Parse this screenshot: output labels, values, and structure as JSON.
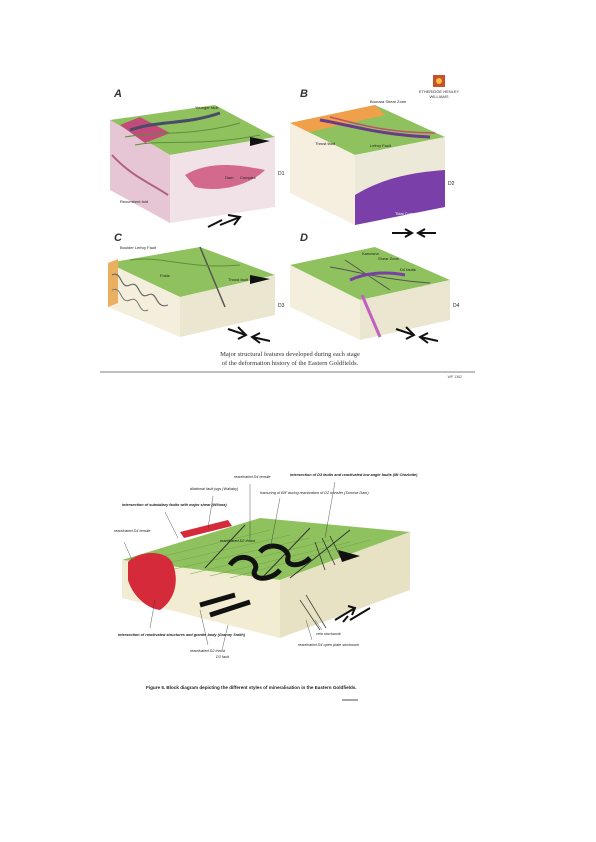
{
  "figure_top": {
    "panel_labels": [
      "A",
      "B",
      "C",
      "D"
    ],
    "stage_labels": [
      "D1",
      "D2",
      "D3",
      "D4"
    ],
    "logo": {
      "line1": "ETHERIDGE HENLEY",
      "line2": "WILLIAMS"
    },
    "caption_line1": "Major structural features developed during each stage",
    "caption_line2": "of the deformation history of the Eastern Goldfields.",
    "figure_code": "WP 1362",
    "panel_a": {
      "labels": [
        "Younger fault",
        "Recumbent fold",
        "Dam",
        "Complex"
      ]
    },
    "panel_b": {
      "labels": [
        "Boorara Shear Zone",
        "Thrust fault",
        "Lefroy Fault",
        "Tidal Complex"
      ]
    },
    "panel_c": {
      "labels": [
        "Boulder Lefroy Fault",
        "Folds",
        "Thrust fault"
      ]
    },
    "panel_d": {
      "labels": [
        "Kanowna",
        "Shear Zone",
        "D4 faults"
      ]
    }
  },
  "figure_bottom": {
    "labels": {
      "reactivated_d4_top": "reactivated D4 tensile",
      "dilational_fault_jogs": "dilational fault jogs (Wallaby)",
      "intersection_subsidiary": "intersection of subsidiary faults with major shear (Wiluna)",
      "reactivated_d4_tensile": "reactivated D4 tensile",
      "reactivated_d2": "reactivated D2 thrust",
      "intersection_d3": "intersection of D3 faults and reactivated low angle faults (Mt Charlotte)",
      "fracturing_bif": "fracturing of BIF during reactivation of D2 transfer (Sunrise Dam)",
      "intersection_granite": "intersection of reactivated structures and granite body (Granny Smith)",
      "reactivated_d2_thrust": "reactivated D2 thrust",
      "d3_fault": "D3 fault",
      "vein_stockwork": "vein stockwork",
      "reactivated_d4_open_plate": "reactivated D4 open plate stockwork"
    },
    "caption": "Figure 5. Block diagram depicting the different styles of mineralisation in the Eastern Goldfields."
  }
}
